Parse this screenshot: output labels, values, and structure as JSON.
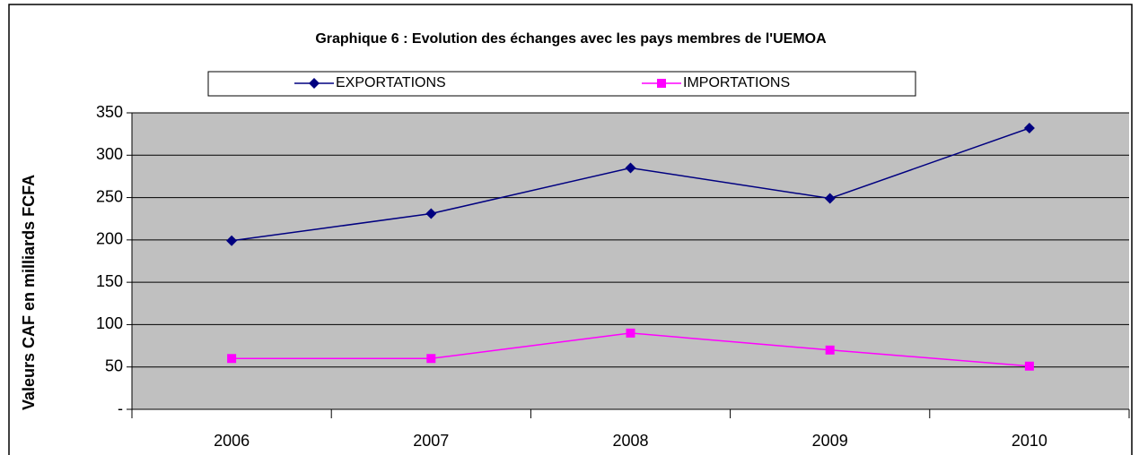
{
  "chart_data": {
    "type": "line",
    "title": "Graphique 6 : Evolution des échanges avec les pays membres de l'UEMOA",
    "y_label": "Valeurs CAF en milliards FCFA",
    "categories": [
      "2006",
      "2007",
      "2008",
      "2009",
      "2010"
    ],
    "series": [
      {
        "name": "EXPORTATIONS",
        "color": "#000080",
        "marker": "diamond",
        "values": [
          199,
          231,
          285,
          249,
          332
        ]
      },
      {
        "name": "IMPORTATIONS",
        "color": "#ff00ff",
        "marker": "square",
        "values": [
          60,
          60,
          90,
          70,
          51
        ]
      }
    ],
    "ylim": [
      0,
      350
    ],
    "yticks": [
      {
        "value": 0,
        "label": "-"
      },
      50,
      100,
      150,
      200,
      250,
      300,
      350
    ],
    "grid": true,
    "legend": "top"
  }
}
